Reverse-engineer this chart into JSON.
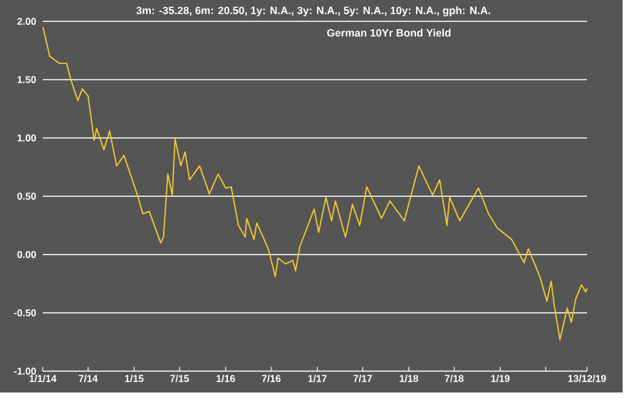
{
  "chart_data": {
    "type": "line",
    "title": "3m: -35.28,    6m: 20.50,    1y: N.A.,    3y: N.A.,    5y: N.A.,    10y: N.A.,    gph: N.A.",
    "subtitle": "German 10Yr Bond Yield",
    "x": [
      "2014-01-02",
      "2014-01-29",
      "2014-03-08",
      "2014-04-06",
      "2014-04-23",
      "2014-05-21",
      "2014-06-08",
      "2014-07-01",
      "2014-07-25",
      "2014-08-04",
      "2014-09-02",
      "2014-09-25",
      "2014-10-23",
      "2014-11-21",
      "2015-01-17",
      "2015-02-04",
      "2015-03-02",
      "2015-04-17",
      "2015-04-28",
      "2015-05-15",
      "2015-06-02",
      "2015-06-13",
      "2015-07-06",
      "2015-07-23",
      "2015-08-10",
      "2015-09-19",
      "2015-10-28",
      "2015-12-02",
      "2016-01-01",
      "2016-01-23",
      "2016-02-21",
      "2016-03-19",
      "2016-03-25",
      "2016-04-23",
      "2016-05-04",
      "2016-06-19",
      "2016-07-17",
      "2016-07-28",
      "2016-08-27",
      "2016-09-25",
      "2016-10-06",
      "2016-10-23",
      "2016-11-21",
      "2016-12-19",
      "2017-01-06",
      "2017-02-04",
      "2017-02-27",
      "2017-03-14",
      "2017-04-23",
      "2017-05-21",
      "2017-06-19",
      "2017-07-17",
      "2017-09-14",
      "2017-10-17",
      "2017-12-14",
      "2018-02-10",
      "2018-04-06",
      "2018-05-04",
      "2018-06-02",
      "2018-06-13",
      "2018-07-23",
      "2018-10-06",
      "2018-11-15",
      "2018-12-19",
      "2019-02-15",
      "2019-04-06",
      "2019-04-23",
      "2019-06-08",
      "2019-07-06",
      "2019-07-23",
      "2019-08-04",
      "2019-08-27",
      "2019-09-25",
      "2019-10-12",
      "2019-10-29",
      "2019-11-21",
      "2019-12-08",
      "2019-12-13"
    ],
    "series": [
      {
        "color": "#f2c830",
        "values": [
          1.95,
          1.7,
          1.64,
          1.64,
          1.5,
          1.32,
          1.42,
          1.36,
          0.98,
          1.08,
          0.9,
          1.06,
          0.76,
          0.85,
          0.49,
          0.35,
          0.37,
          0.1,
          0.15,
          0.69,
          0.51,
          0.99,
          0.76,
          0.88,
          0.64,
          0.76,
          0.52,
          0.69,
          0.57,
          0.58,
          0.25,
          0.15,
          0.31,
          0.13,
          0.27,
          0.05,
          -0.19,
          -0.03,
          -0.08,
          -0.05,
          -0.14,
          0.07,
          0.23,
          0.39,
          0.19,
          0.49,
          0.29,
          0.46,
          0.15,
          0.43,
          0.25,
          0.58,
          0.31,
          0.46,
          0.29,
          0.76,
          0.51,
          0.64,
          0.25,
          0.49,
          0.29,
          0.57,
          0.35,
          0.23,
          0.13,
          -0.07,
          0.05,
          -0.19,
          -0.4,
          -0.23,
          -0.43,
          -0.73,
          -0.46,
          -0.58,
          -0.38,
          -0.26,
          -0.32,
          -0.29
        ]
      }
    ],
    "xlim": [
      "2014-01-01",
      "2019-12-13"
    ],
    "xticks": [
      {
        "value": "2014-01-01",
        "label": "1/1/14"
      },
      {
        "value": "2014-07-01",
        "label": "7/14"
      },
      {
        "value": "2015-01-01",
        "label": "1/15"
      },
      {
        "value": "2015-07-01",
        "label": "7/15"
      },
      {
        "value": "2016-01-01",
        "label": "1/16"
      },
      {
        "value": "2016-07-01",
        "label": "7/16"
      },
      {
        "value": "2017-01-01",
        "label": "1/17"
      },
      {
        "value": "2017-07-01",
        "label": "7/17"
      },
      {
        "value": "2018-01-01",
        "label": "1/18"
      },
      {
        "value": "2018-07-01",
        "label": "7/18"
      },
      {
        "value": "2019-01-01",
        "label": "1/19"
      },
      {
        "value": "2019-07-01",
        "label": null
      },
      {
        "value": "2019-12-13",
        "label": "13/12/19"
      }
    ],
    "ylim": [
      -1,
      2
    ],
    "yticks": [
      {
        "value": -1,
        "label": "-1.00"
      },
      {
        "value": -0.5,
        "label": "-0.50"
      },
      {
        "value": 0,
        "label": "0.00"
      },
      {
        "value": 0.5,
        "label": "0.50"
      },
      {
        "value": 1,
        "label": "1.00"
      },
      {
        "value": 1.5,
        "label": "1.50"
      },
      {
        "value": 2,
        "label": "2.00"
      }
    ],
    "grid": "y",
    "marker": "none",
    "line_style": "solid"
  }
}
